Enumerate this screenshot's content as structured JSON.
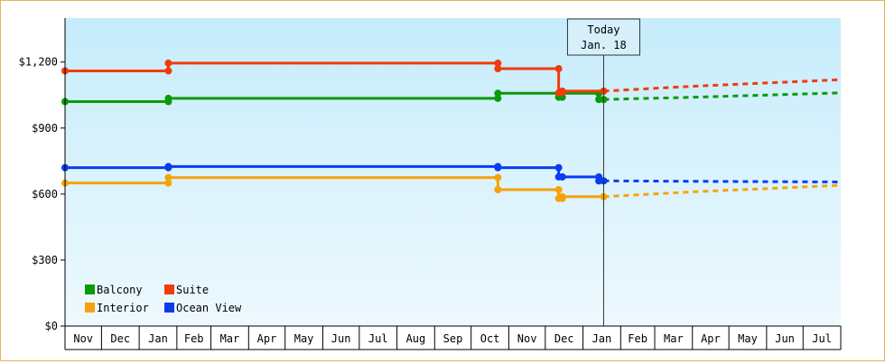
{
  "chart_data": {
    "type": "line",
    "title": "",
    "xlabel": "",
    "ylabel": "",
    "ylim": [
      0,
      1400
    ],
    "y_ticks": [
      {
        "value": 0,
        "label": "$0"
      },
      {
        "value": 300,
        "label": "$300"
      },
      {
        "value": 600,
        "label": "$600"
      },
      {
        "value": 900,
        "label": "$900"
      },
      {
        "value": 1200,
        "label": "$1,200"
      }
    ],
    "x_months": [
      "Nov",
      "Dec",
      "Jan",
      "Feb",
      "Mar",
      "Apr",
      "May",
      "Jun",
      "Jul",
      "Aug",
      "Sep",
      "Oct",
      "Nov",
      "Dec",
      "Jan",
      "Feb",
      "Mar",
      "Apr",
      "May",
      "Jun",
      "Jul"
    ],
    "x_month_starts": [
      "2016-11-01",
      "2016-12-01",
      "2017-01-01",
      "2017-02-01",
      "2017-03-01",
      "2017-04-01",
      "2017-05-01",
      "2017-06-01",
      "2017-07-01",
      "2017-08-01",
      "2017-09-01",
      "2017-10-01",
      "2017-11-01",
      "2017-12-01",
      "2018-01-01",
      "2018-02-01",
      "2018-03-01",
      "2018-04-01",
      "2018-05-01",
      "2018-06-01",
      "2018-07-01",
      "2018-08-01"
    ],
    "today_marker": {
      "line1": "Today",
      "line2": "Jan. 18",
      "date": "2018-01-18"
    },
    "grid": false,
    "legend_position": "bottom-left",
    "series": [
      {
        "name": "Balcony",
        "color": "#0a9a0a",
        "points": [
          {
            "date": "2016-11-01",
            "value": 1020
          },
          {
            "date": "2017-01-25",
            "value": 1020
          },
          {
            "date": "2017-01-25",
            "value": 1035
          },
          {
            "date": "2017-10-23",
            "value": 1035
          },
          {
            "date": "2017-10-23",
            "value": 1058
          },
          {
            "date": "2017-12-12",
            "value": 1058
          },
          {
            "date": "2017-12-12",
            "value": 1040
          },
          {
            "date": "2017-12-15",
            "value": 1040
          },
          {
            "date": "2017-12-15",
            "value": 1058
          },
          {
            "date": "2018-01-14",
            "value": 1058
          },
          {
            "date": "2018-01-14",
            "value": 1030
          },
          {
            "date": "2018-01-18",
            "value": 1030
          }
        ],
        "forecast": [
          {
            "date": "2018-01-18",
            "value": 1030
          },
          {
            "date": "2018-04-01",
            "value": 1040
          },
          {
            "date": "2018-08-01",
            "value": 1060
          }
        ]
      },
      {
        "name": "Suite",
        "color": "#f03c0a",
        "points": [
          {
            "date": "2016-11-01",
            "value": 1160
          },
          {
            "date": "2017-01-25",
            "value": 1160
          },
          {
            "date": "2017-01-25",
            "value": 1195
          },
          {
            "date": "2017-10-23",
            "value": 1195
          },
          {
            "date": "2017-10-23",
            "value": 1170
          },
          {
            "date": "2017-12-12",
            "value": 1170
          },
          {
            "date": "2017-12-12",
            "value": 1060
          },
          {
            "date": "2017-12-15",
            "value": 1060
          },
          {
            "date": "2017-12-15",
            "value": 1068
          },
          {
            "date": "2018-01-18",
            "value": 1068
          }
        ],
        "forecast": [
          {
            "date": "2018-01-18",
            "value": 1068
          },
          {
            "date": "2018-04-01",
            "value": 1090
          },
          {
            "date": "2018-08-01",
            "value": 1120
          }
        ]
      },
      {
        "name": "Interior",
        "color": "#f5a30a",
        "points": [
          {
            "date": "2016-11-01",
            "value": 650
          },
          {
            "date": "2017-01-25",
            "value": 650
          },
          {
            "date": "2017-01-25",
            "value": 675
          },
          {
            "date": "2017-10-23",
            "value": 675
          },
          {
            "date": "2017-10-23",
            "value": 620
          },
          {
            "date": "2017-12-12",
            "value": 620
          },
          {
            "date": "2017-12-12",
            "value": 580
          },
          {
            "date": "2017-12-15",
            "value": 580
          },
          {
            "date": "2017-12-15",
            "value": 588
          },
          {
            "date": "2018-01-18",
            "value": 588
          }
        ],
        "forecast": [
          {
            "date": "2018-01-18",
            "value": 588
          },
          {
            "date": "2018-04-01",
            "value": 610
          },
          {
            "date": "2018-08-01",
            "value": 640
          }
        ]
      },
      {
        "name": "Ocean View",
        "color": "#0a3cf0",
        "points": [
          {
            "date": "2016-11-01",
            "value": 720
          },
          {
            "date": "2017-01-25",
            "value": 720
          },
          {
            "date": "2017-01-25",
            "value": 725
          },
          {
            "date": "2017-10-23",
            "value": 725
          },
          {
            "date": "2017-10-23",
            "value": 720
          },
          {
            "date": "2017-12-12",
            "value": 720
          },
          {
            "date": "2017-12-12",
            "value": 678
          },
          {
            "date": "2017-12-15",
            "value": 678
          },
          {
            "date": "2017-12-15",
            "value": 678
          },
          {
            "date": "2018-01-14",
            "value": 678
          },
          {
            "date": "2018-01-14",
            "value": 660
          },
          {
            "date": "2018-01-18",
            "value": 660
          }
        ],
        "forecast": [
          {
            "date": "2018-01-18",
            "value": 660
          },
          {
            "date": "2018-04-01",
            "value": 658
          },
          {
            "date": "2018-08-01",
            "value": 655
          }
        ]
      }
    ]
  }
}
